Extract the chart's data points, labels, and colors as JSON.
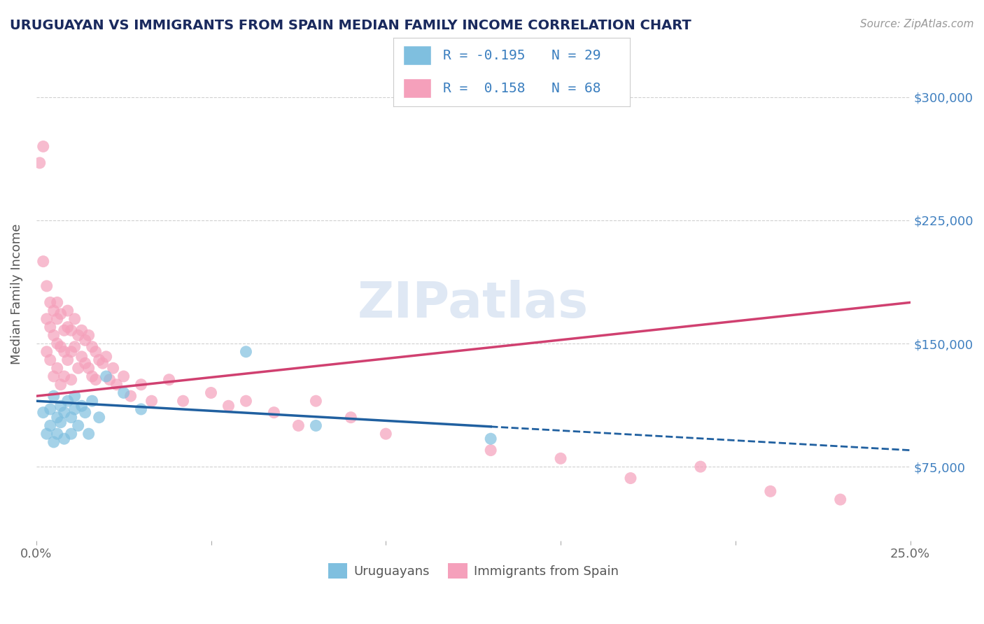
{
  "title": "URUGUAYAN VS IMMIGRANTS FROM SPAIN MEDIAN FAMILY INCOME CORRELATION CHART",
  "source": "Source: ZipAtlas.com",
  "ylabel": "Median Family Income",
  "xlim": [
    0.0,
    0.25
  ],
  "ylim": [
    30000,
    330000
  ],
  "yticks": [
    75000,
    150000,
    225000,
    300000
  ],
  "ytick_labels": [
    "$75,000",
    "$150,000",
    "$225,000",
    "$300,000"
  ],
  "xticks": [
    0.0,
    0.05,
    0.1,
    0.15,
    0.2,
    0.25
  ],
  "xtick_labels": [
    "0.0%",
    "",
    "",
    "",
    "",
    "25.0%"
  ],
  "watermark": "ZIPatlas",
  "uruguayan_color": "#7fbfdf",
  "spain_color": "#f5a0bb",
  "blue_line_color": "#2060a0",
  "pink_line_color": "#d04070",
  "background_color": "#ffffff",
  "grid_color": "#d0d0d0",
  "uruguayan_x": [
    0.002,
    0.003,
    0.004,
    0.004,
    0.005,
    0.005,
    0.006,
    0.006,
    0.007,
    0.007,
    0.008,
    0.008,
    0.009,
    0.01,
    0.01,
    0.011,
    0.011,
    0.012,
    0.013,
    0.014,
    0.015,
    0.016,
    0.018,
    0.02,
    0.025,
    0.03,
    0.06,
    0.08,
    0.13
  ],
  "uruguayan_y": [
    108000,
    95000,
    110000,
    100000,
    118000,
    90000,
    105000,
    95000,
    112000,
    102000,
    108000,
    92000,
    115000,
    105000,
    95000,
    110000,
    118000,
    100000,
    112000,
    108000,
    95000,
    115000,
    105000,
    130000,
    120000,
    110000,
    145000,
    100000,
    92000
  ],
  "spain_x": [
    0.001,
    0.002,
    0.002,
    0.003,
    0.003,
    0.003,
    0.004,
    0.004,
    0.004,
    0.005,
    0.005,
    0.005,
    0.006,
    0.006,
    0.006,
    0.006,
    0.007,
    0.007,
    0.007,
    0.008,
    0.008,
    0.008,
    0.009,
    0.009,
    0.009,
    0.01,
    0.01,
    0.01,
    0.011,
    0.011,
    0.012,
    0.012,
    0.013,
    0.013,
    0.014,
    0.014,
    0.015,
    0.015,
    0.016,
    0.016,
    0.017,
    0.017,
    0.018,
    0.019,
    0.02,
    0.021,
    0.022,
    0.023,
    0.025,
    0.027,
    0.03,
    0.033,
    0.038,
    0.042,
    0.05,
    0.055,
    0.06,
    0.068,
    0.075,
    0.08,
    0.09,
    0.1,
    0.13,
    0.15,
    0.17,
    0.19,
    0.21,
    0.23
  ],
  "spain_y": [
    260000,
    270000,
    200000,
    185000,
    165000,
    145000,
    175000,
    160000,
    140000,
    170000,
    155000,
    130000,
    165000,
    175000,
    150000,
    135000,
    168000,
    148000,
    125000,
    158000,
    145000,
    130000,
    160000,
    170000,
    140000,
    158000,
    145000,
    128000,
    165000,
    148000,
    155000,
    135000,
    158000,
    142000,
    152000,
    138000,
    155000,
    135000,
    148000,
    130000,
    145000,
    128000,
    140000,
    138000,
    142000,
    128000,
    135000,
    125000,
    130000,
    118000,
    125000,
    115000,
    128000,
    115000,
    120000,
    112000,
    115000,
    108000,
    100000,
    115000,
    105000,
    95000,
    85000,
    80000,
    68000,
    75000,
    60000,
    55000
  ]
}
